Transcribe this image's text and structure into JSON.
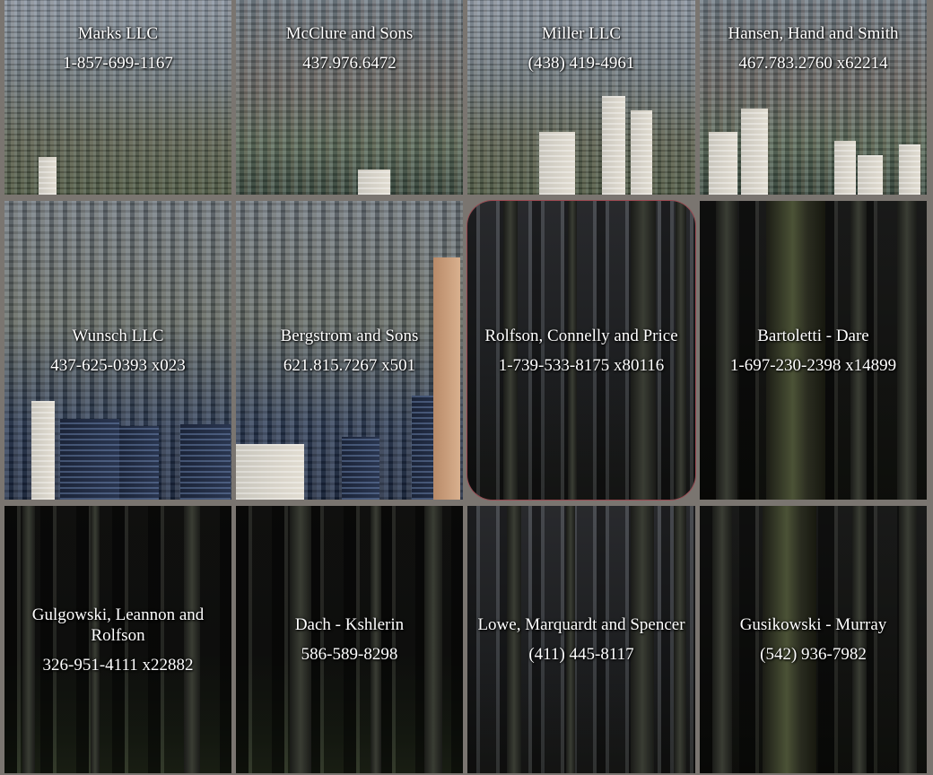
{
  "colors": {
    "gutter": "#7a7570",
    "text": "#ffffff",
    "highlight_border": "#9a4850"
  },
  "tiles": [
    {
      "name": "Marks LLC",
      "phone": "1-857-699-1167",
      "background": "city"
    },
    {
      "name": "McClure and Sons",
      "phone": "437.976.6472",
      "background": "city"
    },
    {
      "name": "Miller LLC",
      "phone": "(438) 419-4961",
      "background": "city"
    },
    {
      "name": "Hansen, Hand and Smith",
      "phone": "467.783.2760 x62214",
      "background": "city"
    },
    {
      "name": "Wunsch LLC",
      "phone": "437-625-0393 x023",
      "background": "city"
    },
    {
      "name": "Bergstrom and Sons",
      "phone": "621.815.7267 x501",
      "background": "city"
    },
    {
      "name": "Rolfson, Connelly and Price",
      "phone": "1-739-533-8175 x80116",
      "background": "forest",
      "highlighted": true
    },
    {
      "name": "Bartoletti - Dare",
      "phone": "1-697-230-2398 x14899",
      "background": "forest"
    },
    {
      "name": "Gulgowski, Leannon and Rolfson",
      "phone": "326-951-4111 x22882",
      "background": "forest"
    },
    {
      "name": "Dach - Kshlerin",
      "phone": "586-589-8298",
      "background": "forest"
    },
    {
      "name": "Lowe, Marquardt and Spencer",
      "phone": "(411) 445-8117",
      "background": "forest"
    },
    {
      "name": "Gusikowski - Murray",
      "phone": "(542) 936-7982",
      "background": "forest"
    }
  ]
}
